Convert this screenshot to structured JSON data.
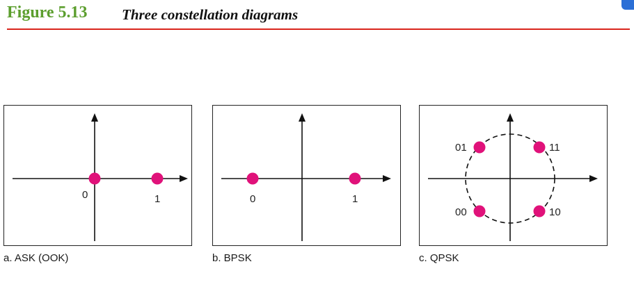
{
  "header": {
    "figure_number": "Figure 5.13",
    "title": "Three constellation diagrams"
  },
  "colors": {
    "figure_number": "#5c9e2e",
    "rule": "#d9251c",
    "point": "#e0127a"
  },
  "panels": [
    {
      "caption": "a. ASK (OOK)",
      "labels": [
        "0",
        "1"
      ]
    },
    {
      "caption": "b. BPSK",
      "labels": [
        "0",
        "1"
      ]
    },
    {
      "caption": "c. QPSK",
      "labels": [
        "01",
        "11",
        "00",
        "10"
      ]
    }
  ]
}
